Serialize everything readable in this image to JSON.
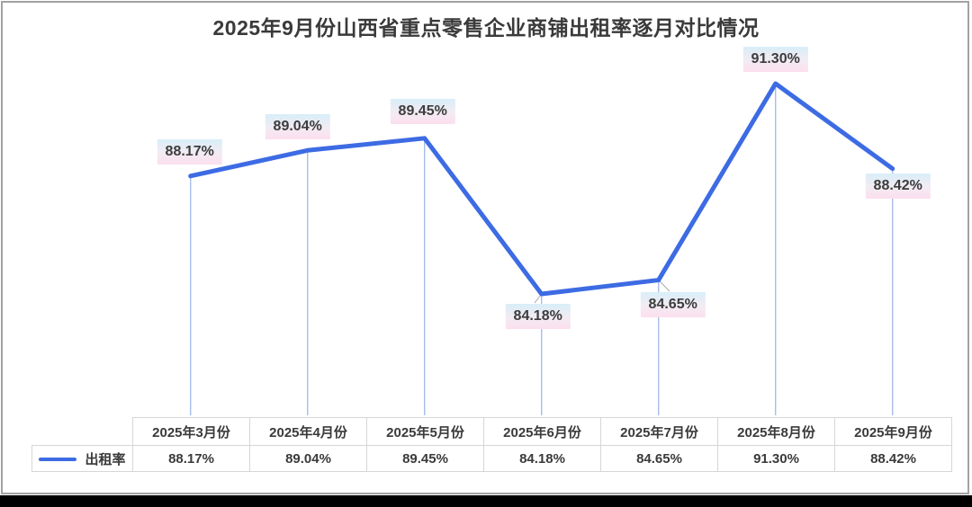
{
  "chart": {
    "title": "2025年9月份山西省重点零售企业商铺出租率逐月对比情况",
    "legend_label": "出租率"
  },
  "chart_data": {
    "type": "line",
    "title": "2025年9月份山西省重点零售企业商铺出租率逐月对比情况",
    "categories": [
      "2025年3月份",
      "2025年4月份",
      "2025年5月份",
      "2025年6月份",
      "2025年7月份",
      "2025年8月份",
      "2025年9月份"
    ],
    "series": [
      {
        "name": "出租率",
        "values": [
          88.17,
          89.04,
          89.45,
          84.18,
          84.65,
          91.3,
          88.42
        ]
      }
    ],
    "data_labels": [
      "88.17%",
      "89.04%",
      "89.45%",
      "84.18%",
      "84.65%",
      "91.30%",
      "88.42%"
    ],
    "table_values": [
      "88.17%",
      "89.04%",
      "89.45%",
      "84.18%",
      "84.65%",
      "91.30%",
      "88.42%"
    ],
    "xlabel": "",
    "ylabel": "",
    "ylim": [
      80,
      92.5
    ],
    "grid": false,
    "value_axis_visible": false,
    "legend_position": "bottom-left-of-data-table",
    "has_drop_lines": true,
    "colors": {
      "line": "#3d6be3",
      "drop_line": "#a7bdec",
      "leader_line": "#a6a6a6",
      "label_text": "#3c3c3c",
      "label_bg_top": "#d8eef8",
      "label_bg_bottom": "#fcdfee",
      "title_text": "#3a3a3a",
      "table_border": "#d6d6d6",
      "table_text": "#3a3a3a"
    }
  }
}
